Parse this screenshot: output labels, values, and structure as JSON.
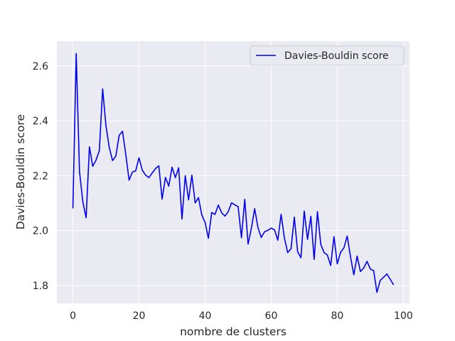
{
  "chart_data": {
    "type": "line",
    "title": "",
    "xlabel": "nombre de clusters",
    "ylabel": "Davies-Bouldin score",
    "xlim": [
      -4.85,
      101.85
    ],
    "ylim": [
      1.735,
      2.69
    ],
    "xticks": [
      0,
      20,
      40,
      60,
      80,
      100
    ],
    "yticks": [
      1.8,
      2.0,
      2.2,
      2.4,
      2.6
    ],
    "xtick_labels": [
      "0",
      "20",
      "40",
      "60",
      "80",
      "100"
    ],
    "ytick_labels": [
      "1.8",
      "2.0",
      "2.2",
      "2.4",
      "2.6"
    ],
    "grid": true,
    "legend_position": "upper right",
    "background_color": "#eaeaf2",
    "series": [
      {
        "name": "Davies-Bouldin score",
        "color": "#0000ee",
        "x": [
          0,
          1,
          2,
          3,
          4,
          5,
          6,
          7,
          8,
          9,
          10,
          11,
          12,
          13,
          14,
          15,
          16,
          17,
          18,
          19,
          20,
          21,
          22,
          23,
          24,
          25,
          26,
          27,
          28,
          29,
          30,
          31,
          32,
          33,
          34,
          35,
          36,
          37,
          38,
          39,
          40,
          41,
          42,
          43,
          44,
          45,
          46,
          47,
          48,
          49,
          50,
          51,
          52,
          53,
          54,
          55,
          56,
          57,
          58,
          59,
          60,
          61,
          62,
          63,
          64,
          65,
          66,
          67,
          68,
          69,
          70,
          71,
          72,
          73,
          74,
          75,
          76,
          77,
          78,
          79,
          80,
          81,
          82,
          83,
          84,
          85,
          86,
          87,
          88,
          89,
          90,
          91,
          92,
          93,
          94,
          95,
          96,
          97
        ],
        "values": [
          2.082,
          2.645,
          2.215,
          2.105,
          2.047,
          2.305,
          2.234,
          2.257,
          2.291,
          2.516,
          2.382,
          2.303,
          2.255,
          2.272,
          2.347,
          2.362,
          2.278,
          2.184,
          2.213,
          2.218,
          2.265,
          2.22,
          2.202,
          2.193,
          2.21,
          2.226,
          2.236,
          2.115,
          2.194,
          2.162,
          2.231,
          2.193,
          2.229,
          2.042,
          2.2,
          2.112,
          2.202,
          2.101,
          2.12,
          2.057,
          2.03,
          1.972,
          2.066,
          2.059,
          2.093,
          2.065,
          2.053,
          2.069,
          2.101,
          2.094,
          2.087,
          1.974,
          2.114,
          1.951,
          2.008,
          2.08,
          2.011,
          1.975,
          1.996,
          2.001,
          2.009,
          2.003,
          1.965,
          2.059,
          1.973,
          1.92,
          1.934,
          2.049,
          1.923,
          1.901,
          2.071,
          1.968,
          2.052,
          1.895,
          2.069,
          1.95,
          1.92,
          1.911,
          1.873,
          1.978,
          1.879,
          1.921,
          1.937,
          1.98,
          1.905,
          1.839,
          1.907,
          1.851,
          1.864,
          1.888,
          1.86,
          1.854,
          1.775,
          1.819,
          1.83,
          1.842,
          1.823,
          1.803
        ]
      }
    ]
  }
}
